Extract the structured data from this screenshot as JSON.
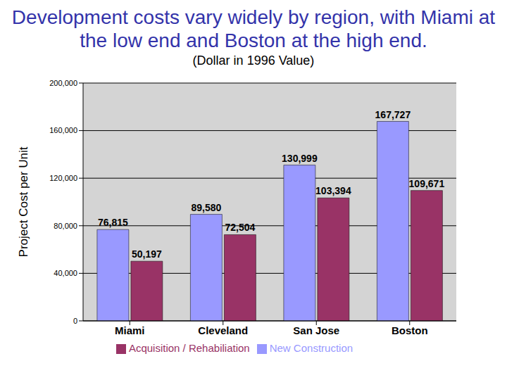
{
  "chart_data": {
    "type": "bar",
    "title": "Development costs vary widely by region, with Miami at the low end and Boston at the high end.",
    "subtitle": "(Dollar in 1996 Value)",
    "y_label": "Project Cost per Unit",
    "categories": [
      "Miami",
      "Cleveland",
      "San Jose",
      "Boston"
    ],
    "series": [
      {
        "name": "New Construction",
        "color": "#9999ff",
        "values": [
          76815,
          89580,
          130999,
          167727
        ],
        "value_labels": [
          "76,815",
          "89,580",
          "130,999",
          "167,727"
        ]
      },
      {
        "name": "Acquisition / Rehabiliation",
        "color": "#993366",
        "values": [
          50197,
          72504,
          103394,
          109671
        ],
        "value_labels": [
          "50,197",
          "72,504",
          "103,394",
          "109,671"
        ]
      }
    ],
    "ylim": [
      0,
      200000
    ],
    "yticks": [
      0,
      {
        "value": 40000,
        "label": "40,000"
      },
      {
        "value": 80000,
        "label": "80,000"
      },
      {
        "value": 120000,
        "label": "120,000"
      },
      {
        "value": 160000,
        "label": "160,000"
      },
      {
        "value": 200000,
        "label": "200,000"
      }
    ],
    "grid": true,
    "legend": "bottom",
    "data_labels": true
  }
}
